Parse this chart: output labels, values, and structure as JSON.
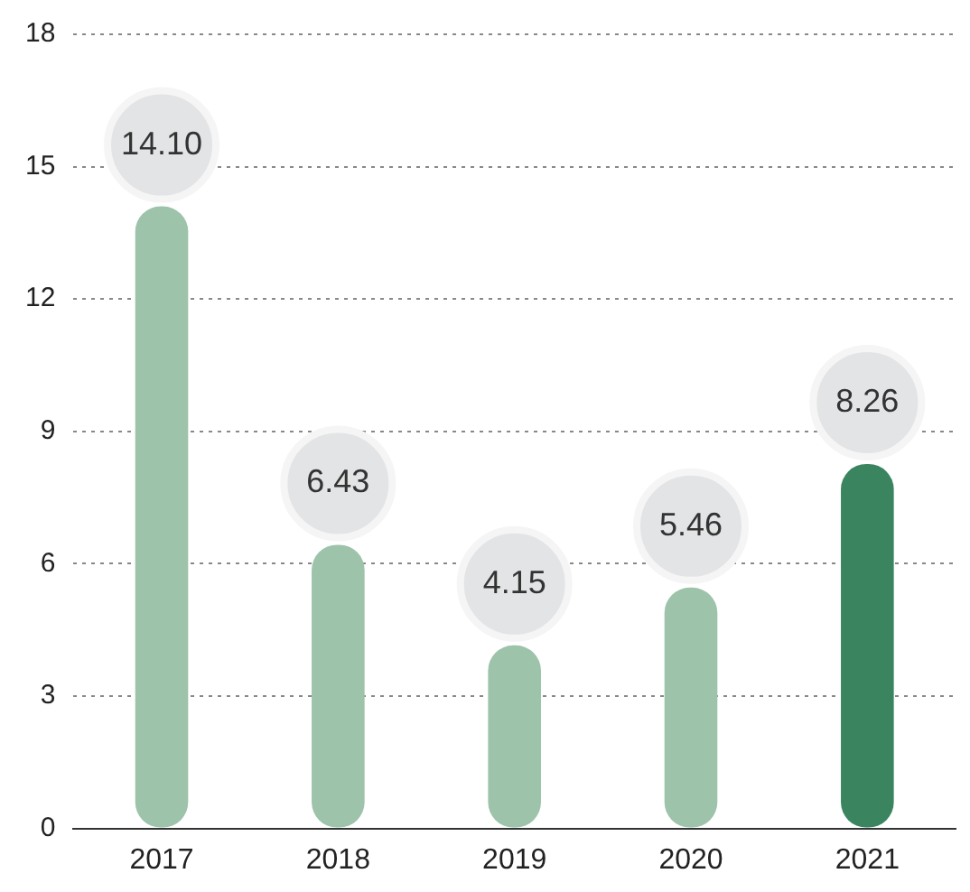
{
  "chart_data": {
    "type": "bar",
    "categories": [
      "2017",
      "2018",
      "2019",
      "2020",
      "2021"
    ],
    "values": [
      14.1,
      6.43,
      4.15,
      5.46,
      8.26
    ],
    "value_labels": [
      "14.10",
      "6.43",
      "4.15",
      "5.46",
      "8.26"
    ],
    "colors": [
      "#9dc3ab",
      "#9dc3ab",
      "#9dc3ab",
      "#9dc3ab",
      "#3a8560"
    ],
    "ylim": [
      0,
      18
    ],
    "yticks": [
      0,
      3,
      6,
      9,
      12,
      15,
      18
    ],
    "grid": "y",
    "legend": false
  }
}
